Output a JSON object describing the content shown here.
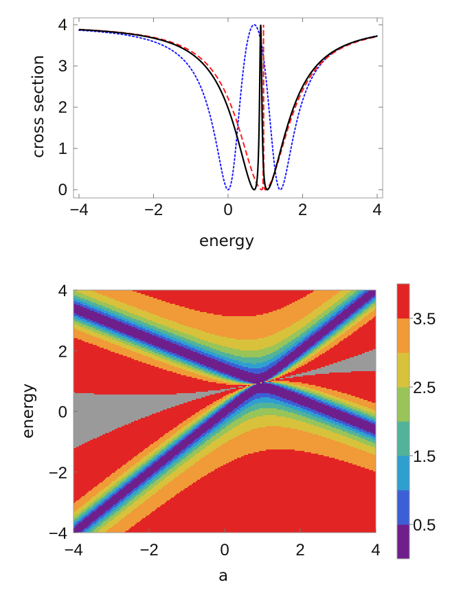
{
  "chart_data": [
    {
      "type": "line",
      "xlabel": "energy",
      "ylabel": "cross section",
      "xlim": [
        -4,
        4
      ],
      "ylim": [
        0,
        4
      ],
      "x_ticks": [
        -4,
        -2,
        0,
        2,
        4
      ],
      "x_tick_labels": [
        "−4",
        "−2",
        "0",
        "2",
        "4"
      ],
      "y_ticks": [
        0,
        1,
        2,
        3,
        4
      ],
      "y_tick_labels": [
        "0",
        "1",
        "2",
        "3",
        "4"
      ],
      "series": [
        {
          "name": "dotted-blue",
          "color": "#1a1aff",
          "dash": "dotted",
          "a": 0.0
        },
        {
          "name": "dashed-red",
          "color": "#ff1a1a",
          "dash": "dashed",
          "a": 1.0
        },
        {
          "name": "solid-black",
          "color": "#000000",
          "dash": "solid",
          "a": 0.7
        }
      ]
    },
    {
      "type": "heatmap",
      "xlabel": "a",
      "ylabel": "energy",
      "xlim": [
        -4,
        4
      ],
      "ylim": [
        -4,
        4
      ],
      "x_ticks": [
        -4,
        -2,
        0,
        2,
        4
      ],
      "x_tick_labels": [
        "−4",
        "−2",
        "0",
        "2",
        "4"
      ],
      "y_ticks": [
        -4,
        -2,
        0,
        2,
        4
      ],
      "y_tick_labels": [
        "−4",
        "−2",
        "0",
        "2",
        "4"
      ],
      "colorbar_ticks": [
        0.5,
        1.5,
        2.5,
        3.5
      ],
      "colorbar_tick_labels": [
        "0.5",
        "1.5",
        "2.5",
        "3.5"
      ],
      "levels": [
        {
          "lo": 0.0,
          "hi": 0.5,
          "color": "#6f1f8c"
        },
        {
          "lo": 0.5,
          "hi": 1.0,
          "color": "#3d5fd6"
        },
        {
          "lo": 1.0,
          "hi": 1.5,
          "color": "#2f9fd0"
        },
        {
          "lo": 1.5,
          "hi": 2.0,
          "color": "#52b39a"
        },
        {
          "lo": 2.0,
          "hi": 2.5,
          "color": "#98c45a"
        },
        {
          "lo": 2.5,
          "hi": 3.0,
          "color": "#d8c23c"
        },
        {
          "lo": 3.0,
          "hi": 3.5,
          "color": "#f09a38"
        },
        {
          "lo": 3.5,
          "hi": 4.0,
          "color": "#e32424"
        }
      ],
      "zero_color": "#9a9a9a"
    }
  ]
}
